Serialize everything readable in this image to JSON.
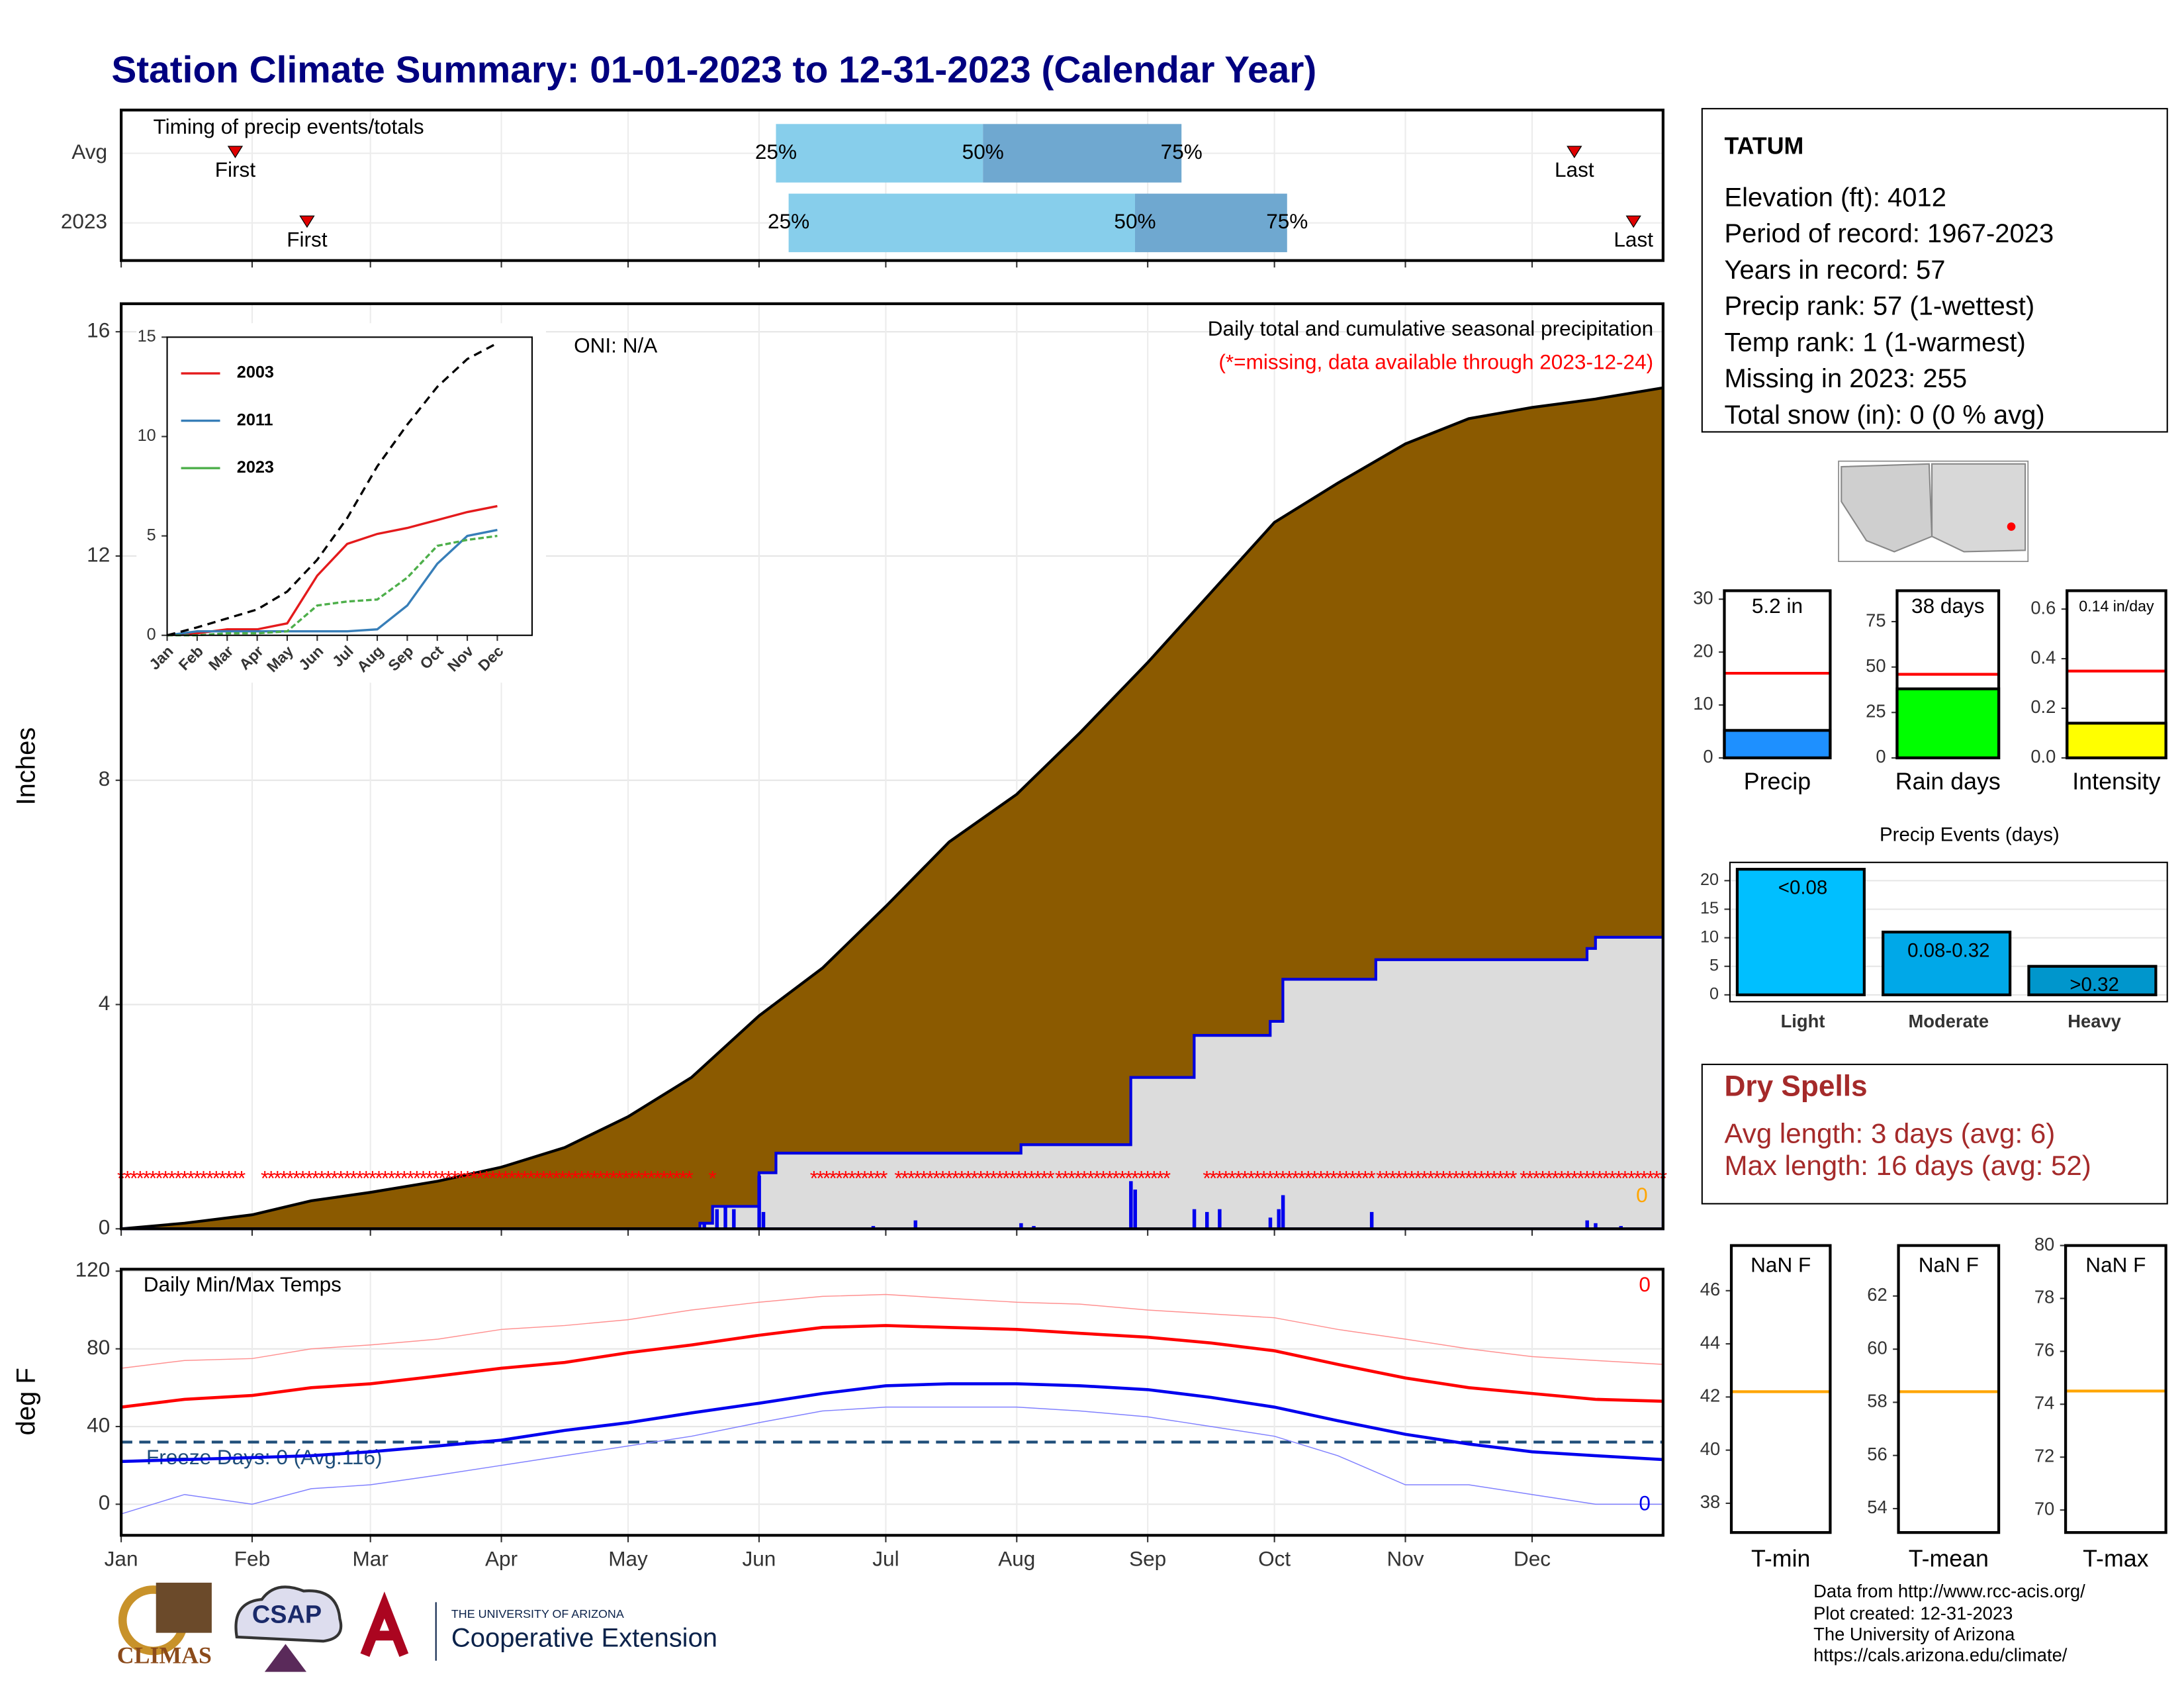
{
  "title": "Station Climate Summary: 01-01-2023 to 12-31-2023 (Calendar Year)",
  "info": {
    "station": "TATUM",
    "lines": [
      "Elevation (ft): 4012",
      "Period of record: 1967-2023",
      "Years in record: 57",
      "Precip rank: 57 (1-wettest)",
      "Temp rank: 1 (1-warmest)",
      "Missing in 2023: 255",
      "Total snow (in): 0 (0 % avg)"
    ]
  },
  "dry_spells": {
    "title": "Dry Spells",
    "lines": [
      "Avg length: 3 days (avg: 6)",
      "Max length: 16 days (avg: 52)"
    ]
  },
  "footer": [
    "Data from http://www.rcc-acis.org/",
    "Plot created: 12-31-2023",
    "The University of Arizona",
    "https://cals.arizona.edu/climate/"
  ],
  "logos": [
    "CLIMAS",
    "CSAP",
    "THE UNIVERSITY OF ARIZONA",
    "Cooperative Extension"
  ],
  "chart_data": [
    {
      "type": "timing",
      "label": "Timing of precip events/totals",
      "xlim": [
        0,
        365
      ],
      "xticks": [
        0,
        31,
        59,
        90,
        120,
        151,
        181,
        212,
        243,
        273,
        304,
        334
      ],
      "markers": [
        "First",
        "25%",
        "50%",
        "75%",
        "Last"
      ],
      "colors": [
        "#87ceeb",
        "#6fa8d0"
      ],
      "marker_color": "#e00000",
      "series": [
        {
          "name": "Avg",
          "values": [
            27,
            155,
            204,
            251,
            344
          ]
        },
        {
          "name": "2023",
          "values": [
            44,
            158,
            240,
            276,
            358
          ]
        }
      ]
    },
    {
      "type": "area",
      "title": "Daily total and cumulative seasonal precipitation",
      "subtitle": "(*=missing, data available through 2023-12-24)",
      "annotation": "ONI: N/A",
      "ylabel": "Inches",
      "note": "0",
      "note_color": "#ffa500",
      "xlim": [
        0,
        365
      ],
      "ylim": [
        0,
        16.5
      ],
      "yticks": [
        0,
        4,
        8,
        12,
        16
      ],
      "xticks": [
        0,
        31,
        59,
        90,
        120,
        151,
        181,
        212,
        243,
        273,
        304,
        334
      ],
      "grid": true,
      "series": [
        {
          "color": "#8b5a00",
          "line_color": "#000000",
          "x": [
            0,
            15,
            31,
            45,
            59,
            75,
            90,
            105,
            120,
            135,
            151,
            166,
            181,
            196,
            212,
            227,
            243,
            258,
            273,
            288,
            304,
            319,
            334,
            349,
            365
          ],
          "values": [
            0,
            0.1,
            0.25,
            0.5,
            0.65,
            0.85,
            1.1,
            1.45,
            2.0,
            2.7,
            3.8,
            4.65,
            5.75,
            6.9,
            7.75,
            8.85,
            10.1,
            11.35,
            12.6,
            13.3,
            14.0,
            14.45,
            14.65,
            14.8,
            15.0
          ]
        },
        {
          "color": "#dcdcdc",
          "line_color": "#0000e0",
          "step": true,
          "x": [
            0,
            137,
            140,
            151,
            155,
            213,
            239,
            254,
            272,
            275,
            297,
            347,
            349,
            365
          ],
          "values": [
            0,
            0.1,
            0.4,
            1.0,
            1.35,
            1.5,
            2.7,
            3.45,
            3.7,
            4.45,
            4.8,
            5.0,
            5.2,
            5.2
          ]
        }
      ],
      "daily": {
        "color": "#0000ee",
        "x": [
          138,
          141,
          143,
          145,
          151,
          152,
          178,
          188,
          213,
          216,
          239,
          240,
          254,
          257,
          260,
          272,
          274,
          275,
          296,
          347,
          349,
          355
        ],
        "values": [
          0.1,
          0.35,
          0.4,
          0.35,
          0.95,
          0.3,
          0.05,
          0.15,
          0.1,
          0.05,
          0.85,
          0.7,
          0.35,
          0.3,
          0.35,
          0.2,
          0.35,
          0.6,
          0.3,
          0.15,
          0.1,
          0.05
        ]
      },
      "missing": {
        "label": "*",
        "color": "#ff0000",
        "y": 1,
        "ranges": [
          [
            0,
            29
          ],
          [
            34,
            135
          ],
          [
            140,
            140
          ],
          [
            164,
            181
          ],
          [
            184,
            220
          ],
          [
            222,
            248
          ],
          [
            257,
            296
          ],
          [
            298,
            330
          ],
          [
            332,
            365
          ]
        ]
      }
    },
    {
      "type": "line",
      "categories": [
        "Jan",
        "Feb",
        "Mar",
        "Apr",
        "May",
        "Jun",
        "Jul",
        "Aug",
        "Sep",
        "Oct",
        "Nov",
        "Dec"
      ],
      "ylim": [
        0,
        15
      ],
      "yticks": [
        0,
        5,
        10,
        15
      ],
      "series": [
        {
          "name": "2003",
          "color": "#e41a1c",
          "values": [
            0,
            0.1,
            0.3,
            0.3,
            0.6,
            3.0,
            4.6,
            5.1,
            5.4,
            5.8,
            6.2,
            6.5
          ]
        },
        {
          "name": "2011",
          "color": "#377eb8",
          "values": [
            0,
            0.2,
            0.2,
            0.2,
            0.2,
            0.2,
            0.2,
            0.3,
            1.5,
            3.6,
            5.0,
            5.3
          ]
        },
        {
          "name": "2023",
          "color": "#4daf4a",
          "dash": "4,2",
          "values": [
            0,
            0,
            0.1,
            0.1,
            0.2,
            1.5,
            1.7,
            1.8,
            2.9,
            4.5,
            4.8,
            5.0
          ]
        },
        {
          "color": "#000000",
          "dash": "6,4",
          "values": [
            0,
            0.4,
            0.85,
            1.3,
            2.2,
            3.8,
            5.9,
            8.5,
            10.6,
            12.5,
            13.9,
            14.7
          ]
        }
      ]
    },
    {
      "type": "line",
      "title": "Daily Min/Max Temps",
      "ylabel": "deg F",
      "xlim": [
        0,
        365
      ],
      "ylim": [
        -16,
        121
      ],
      "yticks": [
        0,
        40,
        80,
        120
      ],
      "grid": true,
      "xticks": [
        {
          "value": 0,
          "label": "Jan"
        },
        {
          "value": 31,
          "label": "Feb"
        },
        {
          "value": 59,
          "label": "Mar"
        },
        {
          "value": 90,
          "label": "Apr"
        },
        {
          "value": 120,
          "label": "May"
        },
        {
          "value": 151,
          "label": "Jun"
        },
        {
          "value": 181,
          "label": "Jul"
        },
        {
          "value": 212,
          "label": "Aug"
        },
        {
          "value": 243,
          "label": "Sep"
        },
        {
          "value": 273,
          "label": "Oct"
        },
        {
          "value": 304,
          "label": "Nov"
        },
        {
          "value": 334,
          "label": "Dec"
        }
      ],
      "x": [
        0,
        15,
        31,
        45,
        59,
        75,
        90,
        105,
        120,
        135,
        151,
        166,
        181,
        196,
        212,
        227,
        243,
        258,
        273,
        288,
        304,
        319,
        334,
        349,
        365
      ],
      "series": [
        {
          "color": "#ff9090",
          "width": 0.7,
          "values": [
            70,
            74,
            75,
            80,
            82,
            85,
            90,
            92,
            95,
            100,
            104,
            107,
            108,
            106,
            104,
            103,
            100,
            98,
            96,
            90,
            85,
            80,
            76,
            74,
            72
          ]
        },
        {
          "color": "#8080ff",
          "width": 0.7,
          "values": [
            -5,
            5,
            0,
            8,
            10,
            15,
            20,
            25,
            30,
            35,
            42,
            48,
            50,
            50,
            50,
            48,
            45,
            40,
            35,
            25,
            10,
            10,
            5,
            0,
            0
          ]
        },
        {
          "color": "#ff0000",
          "width": 2.2,
          "values": [
            50,
            54,
            56,
            60,
            62,
            66,
            70,
            73,
            78,
            82,
            87,
            91,
            92,
            91,
            90,
            88,
            86,
            83,
            79,
            72,
            65,
            60,
            57,
            54,
            53
          ]
        },
        {
          "color": "#0000ee",
          "width": 2.2,
          "values": [
            22,
            23,
            24,
            25,
            27,
            30,
            33,
            38,
            42,
            47,
            52,
            57,
            61,
            62,
            62,
            61,
            59,
            55,
            50,
            43,
            36,
            31,
            27,
            25,
            23
          ]
        }
      ],
      "freeze": {
        "value": 32,
        "label": "Freeze Days: 0 (Avg:116)",
        "color": "#1f4e79"
      },
      "notes": [
        {
          "text": "0",
          "color": "#ff0000"
        },
        {
          "text": "0",
          "color": "#0000ee"
        }
      ]
    },
    {
      "type": "bar",
      "label": "Precip",
      "values": [
        5.2
      ],
      "value_labels": [
        "5.2 in"
      ],
      "avg": 16,
      "color": "#1e90ff",
      "ylim": [
        0,
        31.6
      ],
      "yticks": [
        0,
        10,
        20,
        30
      ]
    },
    {
      "type": "bar",
      "label": "Rain days",
      "values": [
        38
      ],
      "value_labels": [
        "38 days"
      ],
      "avg": 46,
      "color": "#00ff00",
      "ylim": [
        0,
        92
      ],
      "yticks": [
        0,
        25,
        50,
        75
      ]
    },
    {
      "type": "bar",
      "label": "Intensity",
      "values": [
        0.14
      ],
      "value_labels": [
        "0.14 in/day"
      ],
      "avg": 0.35,
      "color": "#ffff00",
      "ylim": [
        0,
        0.674
      ],
      "yticks": [
        {
          "value": 0,
          "label": "0.0"
        },
        0.2,
        0.4,
        0.6
      ]
    },
    {
      "type": "bar",
      "title": "Precip Events (days)",
      "categories": [
        "Light",
        "Moderate",
        "Heavy"
      ],
      "values": [
        22,
        11,
        5
      ],
      "thresholds": [
        "<0.08",
        "0.08-0.32",
        ">0.32"
      ],
      "colors": [
        "#00bfff",
        "#00a8e8",
        "#0096cc"
      ],
      "ylim": [
        -1.2,
        23.2
      ],
      "yticks": [
        0,
        5,
        10,
        15,
        20
      ],
      "grid": true
    },
    {
      "type": "box",
      "label": "T-min",
      "value_label": "NaN F",
      "avg": 42.2,
      "color": "#ffa500",
      "ylim": [
        36.9,
        47.7
      ],
      "yticks": [
        38,
        40,
        42,
        44,
        46
      ]
    },
    {
      "type": "box",
      "label": "T-mean",
      "value_label": "NaN F",
      "avg": 58.4,
      "color": "#ffa500",
      "ylim": [
        53.1,
        63.9
      ],
      "yticks": [
        54,
        56,
        58,
        60,
        62
      ]
    },
    {
      "type": "box",
      "label": "T-max",
      "value_label": "NaN F",
      "avg": 74.5,
      "color": "#ffa500",
      "ylim": [
        69.15,
        80
      ],
      "yticks": [
        70,
        72,
        74,
        76,
        78,
        80
      ]
    }
  ]
}
